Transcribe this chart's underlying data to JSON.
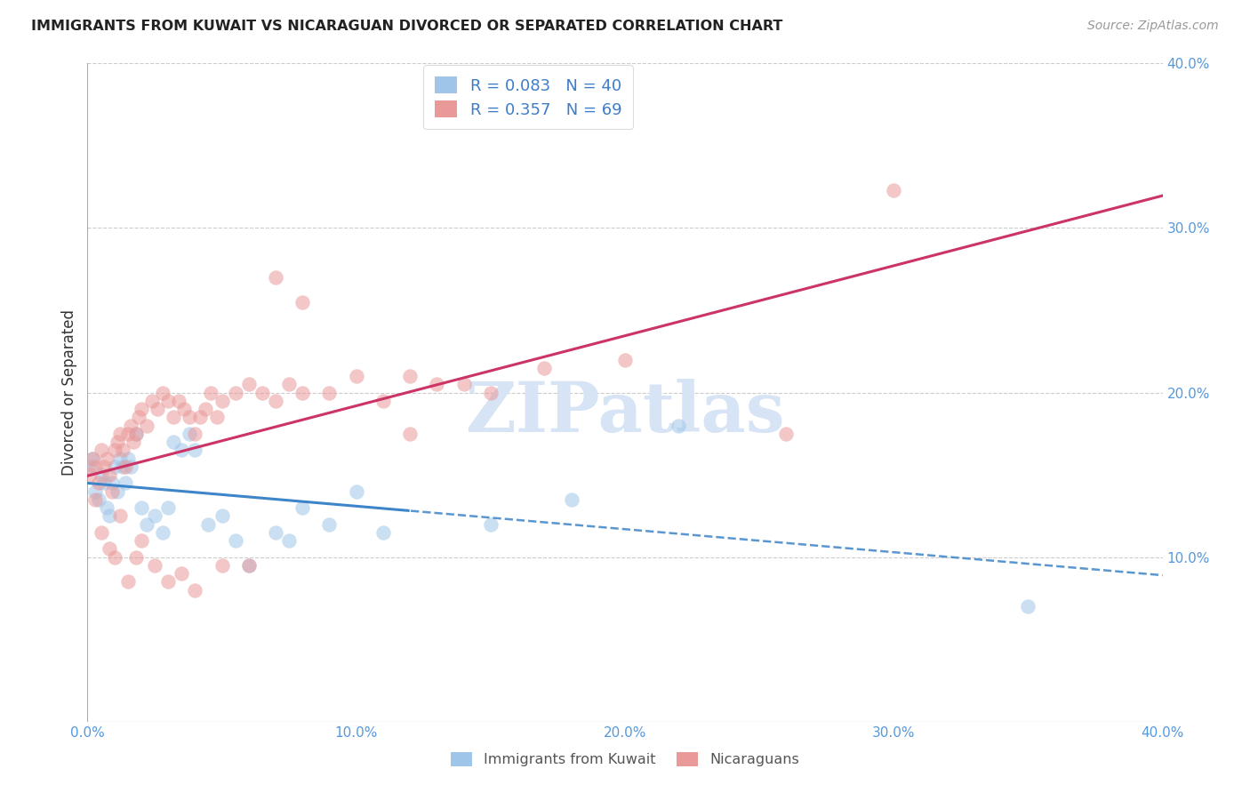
{
  "title": "IMMIGRANTS FROM KUWAIT VS NICARAGUAN DIVORCED OR SEPARATED CORRELATION CHART",
  "source": "Source: ZipAtlas.com",
  "ylabel": "Divorced or Separated",
  "xlim": [
    0.0,
    0.4
  ],
  "ylim": [
    0.0,
    0.4
  ],
  "legend_label1": "Immigrants from Kuwait",
  "legend_label2": "Nicaraguans",
  "R1": "0.083",
  "N1": "40",
  "R2": "0.357",
  "N2": "69",
  "color_blue": "#9fc5e8",
  "color_pink": "#ea9999",
  "line_blue": "#3d85c8",
  "line_pink": "#cc3366",
  "watermark": "ZIPatlas",
  "watermark_color": "#d6e4f5",
  "background_color": "#ffffff",
  "grid_color": "#cccccc",
  "blue_x": [
    0.001,
    0.002,
    0.003,
    0.004,
    0.005,
    0.006,
    0.007,
    0.008,
    0.009,
    0.01,
    0.011,
    0.012,
    0.013,
    0.014,
    0.015,
    0.016,
    0.018,
    0.02,
    0.022,
    0.025,
    0.028,
    0.03,
    0.032,
    0.035,
    0.038,
    0.04,
    0.045,
    0.05,
    0.055,
    0.06,
    0.07,
    0.075,
    0.08,
    0.09,
    0.1,
    0.11,
    0.15,
    0.18,
    0.22,
    0.35
  ],
  "blue_y": [
    0.155,
    0.16,
    0.14,
    0.135,
    0.15,
    0.145,
    0.13,
    0.125,
    0.145,
    0.155,
    0.14,
    0.16,
    0.155,
    0.145,
    0.16,
    0.155,
    0.175,
    0.13,
    0.12,
    0.125,
    0.115,
    0.13,
    0.17,
    0.165,
    0.175,
    0.165,
    0.12,
    0.125,
    0.11,
    0.095,
    0.115,
    0.11,
    0.13,
    0.12,
    0.14,
    0.115,
    0.12,
    0.135,
    0.18,
    0.07
  ],
  "pink_x": [
    0.001,
    0.002,
    0.003,
    0.004,
    0.005,
    0.006,
    0.007,
    0.008,
    0.009,
    0.01,
    0.011,
    0.012,
    0.013,
    0.014,
    0.015,
    0.016,
    0.017,
    0.018,
    0.019,
    0.02,
    0.022,
    0.024,
    0.026,
    0.028,
    0.03,
    0.032,
    0.034,
    0.036,
    0.038,
    0.04,
    0.042,
    0.044,
    0.046,
    0.048,
    0.05,
    0.055,
    0.06,
    0.065,
    0.07,
    0.075,
    0.08,
    0.09,
    0.1,
    0.11,
    0.12,
    0.13,
    0.14,
    0.15,
    0.17,
    0.2,
    0.003,
    0.005,
    0.008,
    0.01,
    0.012,
    0.015,
    0.018,
    0.02,
    0.025,
    0.03,
    0.035,
    0.04,
    0.05,
    0.06,
    0.07,
    0.08,
    0.12,
    0.26,
    0.3
  ],
  "pink_y": [
    0.15,
    0.16,
    0.155,
    0.145,
    0.165,
    0.155,
    0.16,
    0.15,
    0.14,
    0.165,
    0.17,
    0.175,
    0.165,
    0.155,
    0.175,
    0.18,
    0.17,
    0.175,
    0.185,
    0.19,
    0.18,
    0.195,
    0.19,
    0.2,
    0.195,
    0.185,
    0.195,
    0.19,
    0.185,
    0.175,
    0.185,
    0.19,
    0.2,
    0.185,
    0.195,
    0.2,
    0.205,
    0.2,
    0.195,
    0.205,
    0.2,
    0.2,
    0.21,
    0.195,
    0.21,
    0.205,
    0.205,
    0.2,
    0.215,
    0.22,
    0.135,
    0.115,
    0.105,
    0.1,
    0.125,
    0.085,
    0.1,
    0.11,
    0.095,
    0.085,
    0.09,
    0.08,
    0.095,
    0.095,
    0.27,
    0.255,
    0.175,
    0.175,
    0.323
  ]
}
